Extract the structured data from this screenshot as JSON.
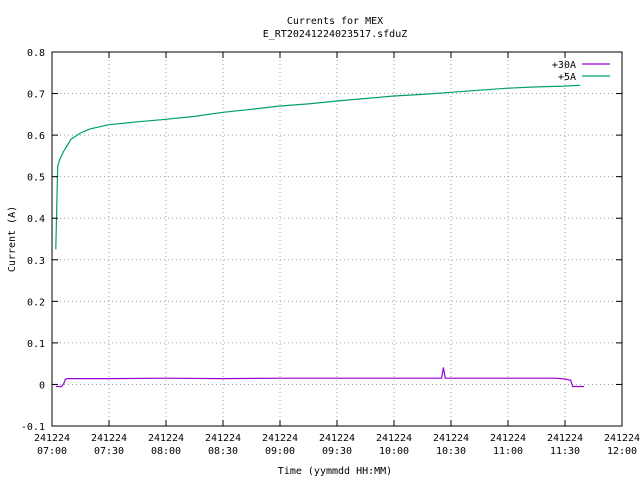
{
  "chart_data": {
    "type": "line",
    "title": "Currents for MEX",
    "subtitle": "E_RT20241224023517.sfduZ",
    "xlabel": "Time (yymmdd HH:MM)",
    "ylabel": "Current (A)",
    "xlim": [
      "07:00",
      "12:00"
    ],
    "ylim": [
      -0.1,
      0.8
    ],
    "grid": true,
    "legend_position": "top-right",
    "x_ticks": [
      {
        "date": "241224",
        "time": "07:00"
      },
      {
        "date": "241224",
        "time": "07:30"
      },
      {
        "date": "241224",
        "time": "08:00"
      },
      {
        "date": "241224",
        "time": "08:30"
      },
      {
        "date": "241224",
        "time": "09:00"
      },
      {
        "date": "241224",
        "time": "09:30"
      },
      {
        "date": "241224",
        "time": "10:00"
      },
      {
        "date": "241224",
        "time": "10:30"
      },
      {
        "date": "241224",
        "time": "11:00"
      },
      {
        "date": "241224",
        "time": "11:30"
      },
      {
        "date": "241224",
        "time": "12:00"
      }
    ],
    "y_ticks": [
      "-0.1",
      "0",
      "0.1",
      "0.2",
      "0.3",
      "0.4",
      "0.5",
      "0.6",
      "0.7",
      "0.8"
    ],
    "series": [
      {
        "name": "+30A",
        "color": "#9400d3",
        "x": [
          "07:02",
          "07:05",
          "07:06",
          "07:07",
          "07:08",
          "07:30",
          "08:00",
          "08:30",
          "09:00",
          "09:30",
          "10:00",
          "10:25",
          "10:26",
          "10:27",
          "10:30",
          "11:00",
          "11:25",
          "11:30",
          "11:33",
          "11:34",
          "11:40"
        ],
        "y": [
          -0.005,
          -0.005,
          0.0,
          0.012,
          0.014,
          0.014,
          0.015,
          0.014,
          0.015,
          0.015,
          0.015,
          0.015,
          0.04,
          0.015,
          0.015,
          0.015,
          0.015,
          0.013,
          0.01,
          -0.005,
          -0.005
        ]
      },
      {
        "name": "+5A",
        "color": "#009e73",
        "x": [
          "07:02",
          "07:03",
          "07:04",
          "07:06",
          "07:08",
          "07:10",
          "07:15",
          "07:20",
          "07:30",
          "07:45",
          "08:00",
          "08:15",
          "08:30",
          "08:45",
          "09:00",
          "09:15",
          "09:30",
          "09:45",
          "10:00",
          "10:15",
          "10:30",
          "10:45",
          "11:00",
          "11:15",
          "11:30",
          "11:38"
        ],
        "y": [
          0.325,
          0.525,
          0.54,
          0.56,
          0.575,
          0.59,
          0.605,
          0.615,
          0.625,
          0.632,
          0.638,
          0.645,
          0.655,
          0.662,
          0.67,
          0.675,
          0.682,
          0.688,
          0.694,
          0.698,
          0.703,
          0.708,
          0.713,
          0.716,
          0.718,
          0.72
        ]
      }
    ]
  }
}
